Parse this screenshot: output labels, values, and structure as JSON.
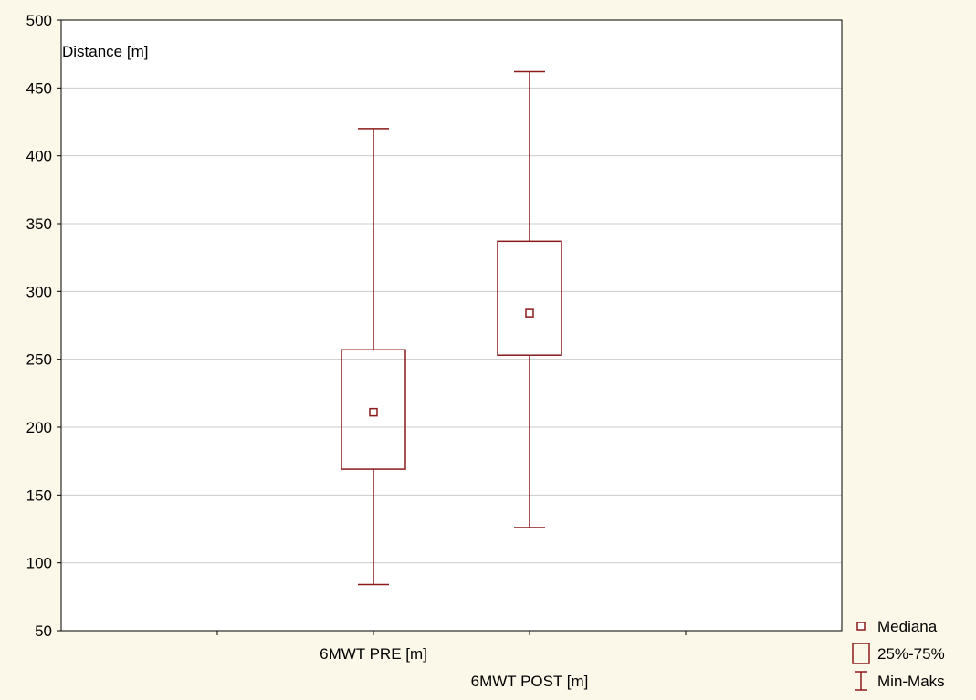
{
  "chart_data": {
    "type": "box",
    "ylabel": "Distance [m]",
    "ylim": [
      50,
      500
    ],
    "yticks": [
      50,
      100,
      150,
      200,
      250,
      300,
      350,
      400,
      450,
      500
    ],
    "grid": true,
    "categories": [
      "6MWT PRE [m]",
      "6MWT POST [m]"
    ],
    "boxes": [
      {
        "category": "6MWT PRE [m]",
        "min": 84,
        "q1": 169,
        "median": 211,
        "q3": 257,
        "max": 420
      },
      {
        "category": "6MWT POST [m]",
        "min": 126,
        "q1": 253,
        "median": 284,
        "q3": 337,
        "max": 462
      }
    ],
    "legend": {
      "placement": "bottom-right",
      "entries": [
        {
          "symbol": "median-marker",
          "label": "Mediana"
        },
        {
          "symbol": "box",
          "label": "25%-75%"
        },
        {
          "symbol": "whisker",
          "label": "Min-Maks"
        }
      ]
    },
    "colors": {
      "box": "#8b1a1a",
      "background": "#fcf8e9",
      "plot": "#ffffff",
      "grid": "#cccccc"
    }
  }
}
